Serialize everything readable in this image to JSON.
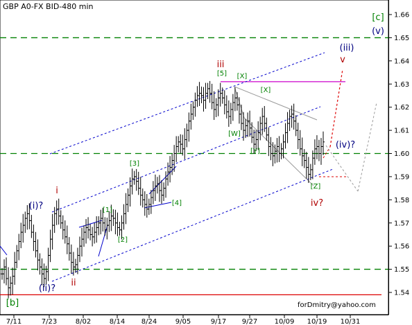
{
  "chart_data": {
    "type": "ohlc",
    "title": "GBP A0-FX BID-480 min",
    "credit": "forDmitry@yahoo.com",
    "x_ticks": [
      "7/11",
      "7/23",
      "8/02",
      "8/14",
      "8/24",
      "9/05",
      "9/17",
      "9/27",
      "10/09",
      "10/19",
      "10/31"
    ],
    "y_ticks": [
      "1.54",
      "1.55",
      "1.56",
      "1.57",
      "1.58",
      "1.59",
      "1.60",
      "1.61",
      "1.62",
      "1.63",
      "1.64",
      "1.65",
      "1.66"
    ],
    "ylim": [
      1.535,
      1.667
    ],
    "grid": false,
    "colors": {
      "bars": "#000000",
      "green_level": "#008000",
      "purple_level": "#cc00cc",
      "red_level": "#dd0000",
      "channel": "#0000cc",
      "wedge": "#999999",
      "label_green": "#008000",
      "label_blue": "#000080",
      "label_red": "#b00000"
    },
    "horizontal_levels": [
      {
        "price": 1.65,
        "style": "dashed",
        "color": "green"
      },
      {
        "price": 1.6,
        "style": "dashed",
        "color": "green"
      },
      {
        "price": 1.55,
        "style": "dashed",
        "color": "green"
      },
      {
        "price": 1.631,
        "style": "solid",
        "color": "purple"
      },
      {
        "price": 1.539,
        "style": "solid",
        "color": "red"
      }
    ],
    "closes": [
      1.548,
      1.551,
      1.546,
      1.542,
      1.544,
      1.547,
      1.553,
      1.558,
      1.562,
      1.566,
      1.569,
      1.572,
      1.574,
      1.571,
      1.566,
      1.562,
      1.558,
      1.554,
      1.551,
      1.548,
      1.546,
      1.549,
      1.556,
      1.563,
      1.569,
      1.574,
      1.576,
      1.573,
      1.57,
      1.567,
      1.564,
      1.561,
      1.557,
      1.553,
      1.551,
      1.552,
      1.556,
      1.56,
      1.563,
      1.566,
      1.568,
      1.567,
      1.565,
      1.564,
      1.566,
      1.568,
      1.57,
      1.572,
      1.57,
      1.567,
      1.569,
      1.571,
      1.573,
      1.572,
      1.57,
      1.568,
      1.567,
      1.57,
      1.574,
      1.578,
      1.582,
      1.586,
      1.589,
      1.59,
      1.588,
      1.585,
      1.582,
      1.58,
      1.578,
      1.576,
      1.578,
      1.581,
      1.584,
      1.586,
      1.587,
      1.584,
      1.582,
      1.585,
      1.589,
      1.592,
      1.594,
      1.597,
      1.6,
      1.603,
      1.605,
      1.604,
      1.602,
      1.606,
      1.61,
      1.614,
      1.617,
      1.62,
      1.623,
      1.625,
      1.626,
      1.625,
      1.623,
      1.626,
      1.628,
      1.626,
      1.622,
      1.619,
      1.621,
      1.624,
      1.626,
      1.624,
      1.621,
      1.618,
      1.616,
      1.619,
      1.622,
      1.624,
      1.621,
      1.617,
      1.613,
      1.61,
      1.612,
      1.614,
      1.611,
      1.607,
      1.604,
      1.606,
      1.609,
      1.613,
      1.616,
      1.613,
      1.608,
      1.603,
      1.6,
      1.599,
      1.601,
      1.603,
      1.6,
      1.602,
      1.605,
      1.609,
      1.613,
      1.616,
      1.617,
      1.614,
      1.61,
      1.606,
      1.602,
      1.599,
      1.597,
      1.594,
      1.591,
      1.593,
      1.598,
      1.602,
      1.603,
      1.6,
      1.603,
      1.605
    ],
    "wave_labels": [
      {
        "text": "[c]",
        "color": "green",
        "size": "large"
      },
      {
        "text": "(v)",
        "color": "blue",
        "size": "large"
      },
      {
        "text": "(iii)",
        "color": "blue",
        "size": "large"
      },
      {
        "text": "v",
        "color": "red",
        "size": "large"
      },
      {
        "text": "iii",
        "color": "red",
        "size": "large"
      },
      {
        "text": "[5]",
        "color": "green",
        "size": "small"
      },
      {
        "text": "[X]",
        "color": "green",
        "size": "small"
      },
      {
        "text": "[X]",
        "color": "green",
        "size": "small"
      },
      {
        "text": "[W]",
        "color": "green",
        "size": "small"
      },
      {
        "text": "[Y]",
        "color": "green",
        "size": "small"
      },
      {
        "text": "[Z]",
        "color": "green",
        "size": "small"
      },
      {
        "text": "(iv)?",
        "color": "blue",
        "size": "large"
      },
      {
        "text": "iv?",
        "color": "red",
        "size": "large"
      },
      {
        "text": "[3]",
        "color": "green",
        "size": "small"
      },
      {
        "text": "[4]",
        "color": "green",
        "size": "small"
      },
      {
        "text": "[1]",
        "color": "green",
        "size": "small"
      },
      {
        "text": "[2]",
        "color": "green",
        "size": "small"
      },
      {
        "text": "i",
        "color": "red",
        "size": "large"
      },
      {
        "text": "(i)?",
        "color": "blue",
        "size": "large"
      },
      {
        "text": "(ii)?",
        "color": "blue",
        "size": "large"
      },
      {
        "text": "ii",
        "color": "red",
        "size": "large"
      },
      {
        "text": "[b]",
        "color": "green",
        "size": "large"
      }
    ]
  }
}
